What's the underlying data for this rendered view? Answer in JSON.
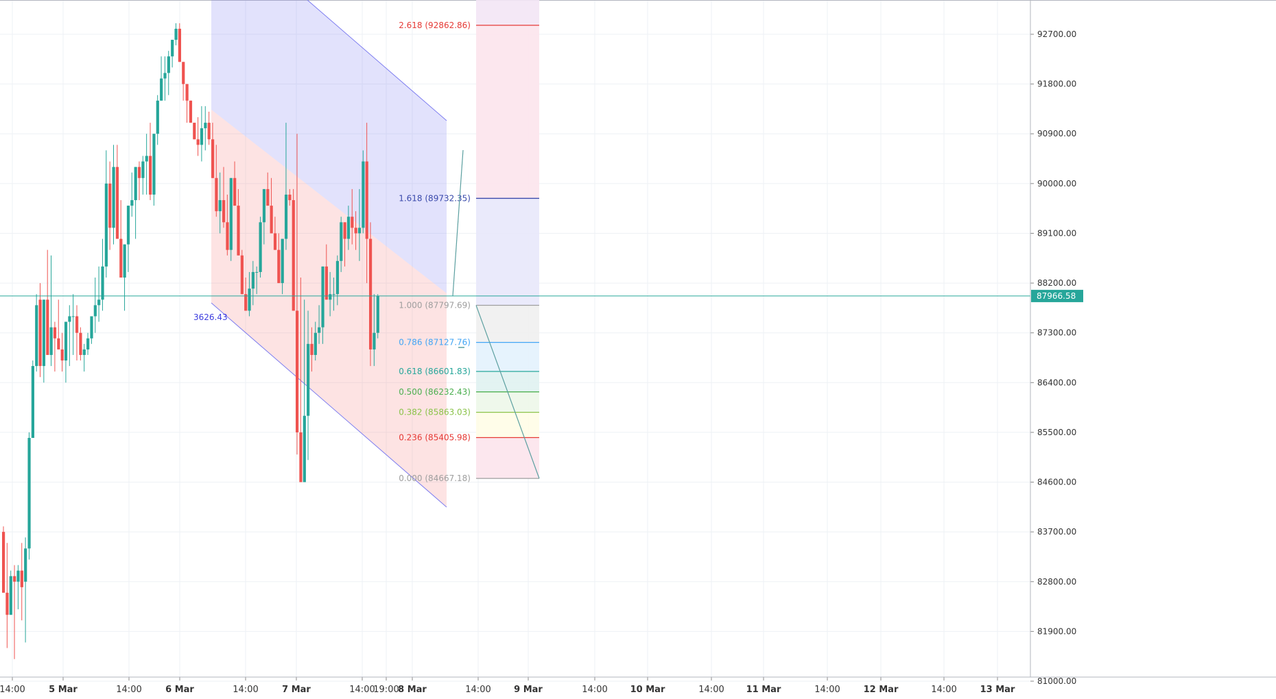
{
  "chart_data": {
    "type": "candlestick",
    "y_axis": {
      "ticks": [
        "92700.00",
        "91800.00",
        "90900.00",
        "90000.00",
        "89100.00",
        "88200.00",
        "87300.00",
        "86400.00",
        "85500.00",
        "84600.00",
        "83700.00",
        "82800.00",
        "81900.00",
        "81000.00"
      ],
      "ylim": [
        80750,
        93680
      ]
    },
    "x_axis": {
      "ticks": [
        "14:00",
        "5 Mar",
        "14:00",
        "6 Mar",
        "14:00",
        "7 Mar",
        "14:00",
        "19:00",
        "8 Mar",
        "14:00",
        "9 Mar",
        "14:00",
        "10 Mar",
        "14:00",
        "11 Mar",
        "14:00",
        "12 Mar",
        "14:00",
        "13 Mar"
      ]
    },
    "current_price": {
      "label": "87966.58",
      "value": 87966.58,
      "color": "#26a69a"
    },
    "candles_ohlc": [
      [
        83700,
        83800,
        82800,
        82600
      ],
      [
        82600,
        83500,
        81600,
        82200
      ],
      [
        82200,
        83000,
        82300,
        82900
      ],
      [
        82900,
        83100,
        81400,
        82800
      ],
      [
        82800,
        83100,
        82300,
        83000
      ],
      [
        83000,
        83500,
        82100,
        82700
      ],
      [
        82800,
        83600,
        81700,
        83400
      ],
      [
        83400,
        85500,
        83200,
        85400
      ],
      [
        85400,
        86800,
        85400,
        86700
      ],
      [
        86700,
        88000,
        86600,
        87800
      ],
      [
        87900,
        88200,
        86500,
        86700
      ],
      [
        86700,
        87600,
        86400,
        87900
      ],
      [
        87900,
        88800,
        87300,
        86900
      ],
      [
        86900,
        88700,
        86700,
        87400
      ],
      [
        87400,
        87500,
        86600,
        87200
      ],
      [
        87200,
        87900,
        87000,
        87000
      ],
      [
        87000,
        87300,
        86600,
        86800
      ],
      [
        86800,
        87400,
        86400,
        87500
      ],
      [
        87500,
        87800,
        86700,
        87600
      ],
      [
        87600,
        88000,
        86900,
        87600
      ],
      [
        87600,
        87800,
        86800,
        87300
      ],
      [
        87300,
        87400,
        86800,
        86900
      ],
      [
        86900,
        87100,
        86600,
        87000
      ],
      [
        87000,
        87300,
        86900,
        87200
      ],
      [
        87200,
        87600,
        87100,
        87600
      ],
      [
        87600,
        88300,
        87300,
        87800
      ],
      [
        87800,
        88500,
        87500,
        87900
      ],
      [
        87900,
        89000,
        87700,
        88500
      ],
      [
        88500,
        90600,
        88300,
        90000
      ],
      [
        90000,
        90400,
        88800,
        89200
      ],
      [
        89200,
        90700,
        88900,
        90300
      ],
      [
        90300,
        90700,
        89400,
        89000
      ],
      [
        89000,
        89700,
        88500,
        88300
      ],
      [
        88300,
        88600,
        87700,
        88900
      ],
      [
        88900,
        89200,
        88400,
        89600
      ],
      [
        89600,
        90200,
        89400,
        89700
      ],
      [
        89700,
        90200,
        89000,
        90300
      ],
      [
        90300,
        90400,
        89700,
        90100
      ],
      [
        90100,
        90500,
        89800,
        90400
      ],
      [
        90400,
        90900,
        89800,
        90500
      ],
      [
        90500,
        91100,
        89700,
        89800
      ],
      [
        89800,
        90600,
        89600,
        90900
      ],
      [
        90900,
        91600,
        90700,
        91500
      ],
      [
        91500,
        92300,
        91500,
        91900
      ],
      [
        91900,
        92300,
        91500,
        92000
      ],
      [
        92000,
        92400,
        91600,
        92300
      ],
      [
        92300,
        92600,
        92100,
        92600
      ],
      [
        92600,
        92900,
        92500,
        92800
      ],
      [
        92800,
        92900,
        92300,
        92200
      ],
      [
        92200,
        91900,
        91500,
        91800
      ],
      [
        91800,
        91500,
        91100,
        91500
      ],
      [
        91500,
        91500,
        91100,
        91100
      ],
      [
        91100,
        91100,
        90800,
        90800
      ],
      [
        90800,
        91200,
        90500,
        90700
      ],
      [
        90700,
        91400,
        90400,
        91000
      ],
      [
        91000,
        91400,
        90600,
        91100
      ],
      [
        91100,
        91300,
        90700,
        90800
      ],
      [
        90800,
        91100,
        90300,
        90100
      ],
      [
        90100,
        90700,
        89400,
        89500
      ],
      [
        89500,
        90200,
        89100,
        89700
      ],
      [
        89700,
        90300,
        89200,
        89300
      ],
      [
        89300,
        89800,
        88700,
        88800
      ],
      [
        88800,
        90000,
        88600,
        90100
      ],
      [
        90100,
        90400,
        89600,
        89600
      ],
      [
        89600,
        89900,
        88900,
        88700
      ],
      [
        88700,
        88800,
        88000,
        88000
      ],
      [
        88000,
        88300,
        87800,
        87700
      ],
      [
        87700,
        88400,
        87600,
        88100
      ],
      [
        88100,
        88600,
        87800,
        88400
      ],
      [
        88400,
        88500,
        88000,
        88400
      ],
      [
        88400,
        89400,
        88300,
        89300
      ],
      [
        89300,
        89500,
        88900,
        89900
      ],
      [
        89900,
        90200,
        89600,
        89600
      ],
      [
        89600,
        90100,
        89300,
        89100
      ],
      [
        89100,
        89400,
        88800,
        88800
      ],
      [
        88800,
        89100,
        88500,
        88200
      ],
      [
        88200,
        88900,
        88000,
        89000
      ],
      [
        89000,
        91100,
        88800,
        89800
      ],
      [
        89800,
        89900,
        89600,
        89700
      ],
      [
        89700,
        89900,
        89400,
        87700
      ],
      [
        87700,
        90900,
        85100,
        85500
      ],
      [
        85500,
        88300,
        84600,
        84600
      ],
      [
        84600,
        87900,
        84600,
        85800
      ],
      [
        85800,
        87700,
        85000,
        87100
      ],
      [
        87100,
        87400,
        86600,
        86900
      ],
      [
        86900,
        87500,
        86800,
        87300
      ],
      [
        87300,
        87800,
        87100,
        87400
      ],
      [
        87400,
        88400,
        87100,
        88500
      ],
      [
        88500,
        88900,
        87900,
        87900
      ],
      [
        87900,
        88400,
        87600,
        88000
      ],
      [
        88000,
        88300,
        87700,
        88000
      ],
      [
        88000,
        88700,
        87800,
        88600
      ],
      [
        88600,
        89400,
        88400,
        89300
      ],
      [
        89300,
        89300,
        88500,
        89000
      ],
      [
        89000,
        89600,
        88800,
        89400
      ],
      [
        89400,
        89900,
        88900,
        89200
      ],
      [
        89200,
        89500,
        88800,
        89100
      ],
      [
        89100,
        89900,
        88600,
        89200
      ],
      [
        89200,
        90600,
        89100,
        90400
      ],
      [
        90400,
        91100,
        88200,
        89000
      ],
      [
        89000,
        89300,
        86700,
        87000
      ],
      [
        87000,
        88000,
        86700,
        87300
      ],
      [
        87300,
        88000,
        87200,
        87966
      ]
    ],
    "fib_extension": {
      "levels": [
        {
          "label": "2.618 (92862.86)",
          "value": 92862.86,
          "color": "#e53935"
        },
        {
          "label": "1.618 (89732.35)",
          "value": 89732.35,
          "color": "#3949ab"
        },
        {
          "label": "1.000 (87797.69)",
          "value": 87797.69,
          "color": "#9e9e9e"
        },
        {
          "label": "0.786 (87127.76)",
          "value": 87127.76,
          "color": "#42a5f5"
        },
        {
          "label": "0.618 (86601.83)",
          "value": 86601.83,
          "color": "#26a69a"
        },
        {
          "label": "0.500 (86232.43)",
          "value": 86232.43,
          "color": "#4caf50"
        },
        {
          "label": "0.382 (85863.03)",
          "value": 85863.03,
          "color": "#8bc34a"
        },
        {
          "label": "0.236 (85405.98)",
          "value": 85405.98,
          "color": "#e53935"
        },
        {
          "label": "0.000 (84667.18)",
          "value": 84667.18,
          "color": "#9e9e9e"
        }
      ]
    },
    "channel_label": "3626.43",
    "colors": {
      "up": "#26a69a",
      "down": "#ef5350",
      "grid": "#eef1f5",
      "axis_text": "#333333",
      "blue_label": "#3b3bde"
    }
  }
}
